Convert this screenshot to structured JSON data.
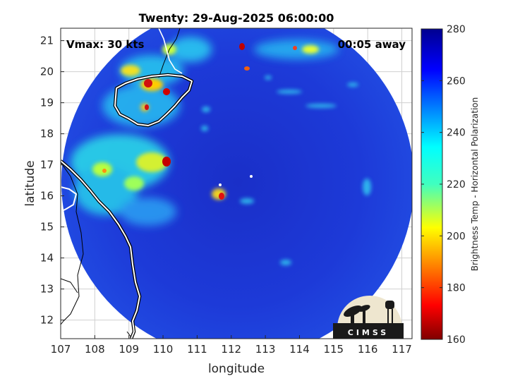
{
  "title": "Twenty: 29-Aug-2025 06:00:00",
  "vmax_label": "Vmax: 30 kts",
  "away_label": "00:05 away",
  "xlabel": "longitude",
  "ylabel": "latitude",
  "x_ticks": [
    "107",
    "108",
    "109",
    "110",
    "111",
    "112",
    "113",
    "114",
    "115",
    "116",
    "117"
  ],
  "y_ticks": [
    "21",
    "20",
    "19",
    "18",
    "17",
    "16",
    "15",
    "14",
    "13",
    "12"
  ],
  "x_range": [
    107,
    117.3
  ],
  "y_range": [
    11.4,
    21.4
  ],
  "colorbar": {
    "label": "Brightness Temp - Horizontal Polarization",
    "ticks": [
      "280",
      "260",
      "240",
      "220",
      "200",
      "180",
      "160"
    ],
    "range": [
      160,
      280
    ],
    "colormap": "jet"
  },
  "logo_text": "CIMSS",
  "colors": {
    "background_scene": "#1f3fd4",
    "coastline_white": "#ffffff",
    "coastline_black": "#000000"
  },
  "swath": {
    "center_lon": 111.9,
    "center_lat": 16.2,
    "radius_deg": 4.75
  },
  "storm_center": {
    "lon": 111.8,
    "lat": 16.1
  }
}
